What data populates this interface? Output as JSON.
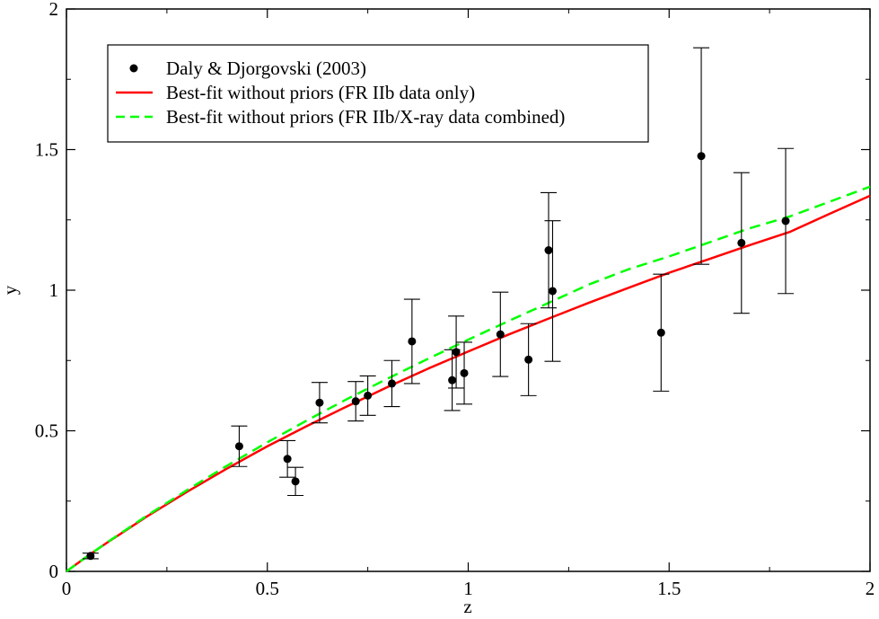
{
  "chart_data": {
    "type": "scatter",
    "xlabel": "z",
    "ylabel": "y",
    "xlim": [
      0,
      2
    ],
    "ylim": [
      0,
      2
    ],
    "x_ticks": [
      0,
      0.5,
      1,
      1.5,
      2
    ],
    "x_tick_labels": [
      "0",
      "0.5",
      "1",
      "1.5",
      "2"
    ],
    "y_ticks": [
      0,
      0.5,
      1,
      1.5,
      2
    ],
    "y_tick_labels": [
      "0",
      "0.5",
      "1",
      "1.5",
      "2"
    ],
    "grid": false,
    "legend_position": "top-left",
    "series": [
      {
        "name": "Daly & Djorgovski (2003)",
        "kind": "points-with-error-bars",
        "color": "#000000",
        "points": [
          {
            "x": 0.06,
            "y": 0.055,
            "err": 0.01
          },
          {
            "x": 0.43,
            "y": 0.445,
            "err": 0.072
          },
          {
            "x": 0.55,
            "y": 0.4,
            "err": 0.065
          },
          {
            "x": 0.57,
            "y": 0.32,
            "err": 0.05
          },
          {
            "x": 0.63,
            "y": 0.6,
            "err": 0.072
          },
          {
            "x": 0.72,
            "y": 0.605,
            "err": 0.07
          },
          {
            "x": 0.75,
            "y": 0.625,
            "err": 0.07
          },
          {
            "x": 0.81,
            "y": 0.668,
            "err": 0.082
          },
          {
            "x": 0.86,
            "y": 0.818,
            "err": 0.15
          },
          {
            "x": 0.96,
            "y": 0.68,
            "err": 0.108
          },
          {
            "x": 0.97,
            "y": 0.78,
            "err": 0.128
          },
          {
            "x": 0.99,
            "y": 0.705,
            "err": 0.11
          },
          {
            "x": 1.08,
            "y": 0.843,
            "err": 0.15
          },
          {
            "x": 1.15,
            "y": 0.753,
            "err": 0.128
          },
          {
            "x": 1.2,
            "y": 1.142,
            "err": 0.205
          },
          {
            "x": 1.21,
            "y": 0.997,
            "err": 0.25
          },
          {
            "x": 1.48,
            "y": 0.849,
            "err": 0.208
          },
          {
            "x": 1.58,
            "y": 1.477,
            "err": 0.385
          },
          {
            "x": 1.68,
            "y": 1.168,
            "err": 0.25
          },
          {
            "x": 1.79,
            "y": 1.246,
            "err": 0.258
          }
        ]
      },
      {
        "name": "Best-fit without priors (FR IIb data only)",
        "kind": "line",
        "style": "solid",
        "color": "#ff0000",
        "x": [
          0,
          0.05,
          0.1,
          0.2,
          0.3,
          0.4,
          0.5,
          0.6,
          0.7,
          0.8,
          0.9,
          1.0,
          1.1,
          1.2,
          1.3,
          1.4,
          1.5,
          1.6,
          1.7,
          1.8,
          1.9,
          2.0
        ],
        "y": [
          0,
          0.052,
          0.101,
          0.195,
          0.283,
          0.366,
          0.445,
          0.518,
          0.588,
          0.656,
          0.721,
          0.782,
          0.842,
          0.899,
          0.955,
          1.009,
          1.062,
          1.111,
          1.16,
          1.207,
          1.272,
          1.336
        ]
      },
      {
        "name": "Best-fit without priors (FR IIb/X-ray data combined)",
        "kind": "line",
        "style": "dashed",
        "color": "#00ff00",
        "x": [
          0,
          0.05,
          0.1,
          0.2,
          0.3,
          0.4,
          0.5,
          0.6,
          0.7,
          0.8,
          0.9,
          1.0,
          1.1,
          1.2,
          1.3,
          1.4,
          1.5,
          1.6,
          1.7,
          1.8,
          1.9,
          2.0
        ],
        "y": [
          0,
          0.052,
          0.102,
          0.198,
          0.289,
          0.376,
          0.459,
          0.538,
          0.614,
          0.686,
          0.756,
          0.824,
          0.89,
          0.955,
          1.02,
          1.075,
          1.12,
          1.17,
          1.22,
          1.262,
          1.315,
          1.368
        ]
      }
    ]
  }
}
